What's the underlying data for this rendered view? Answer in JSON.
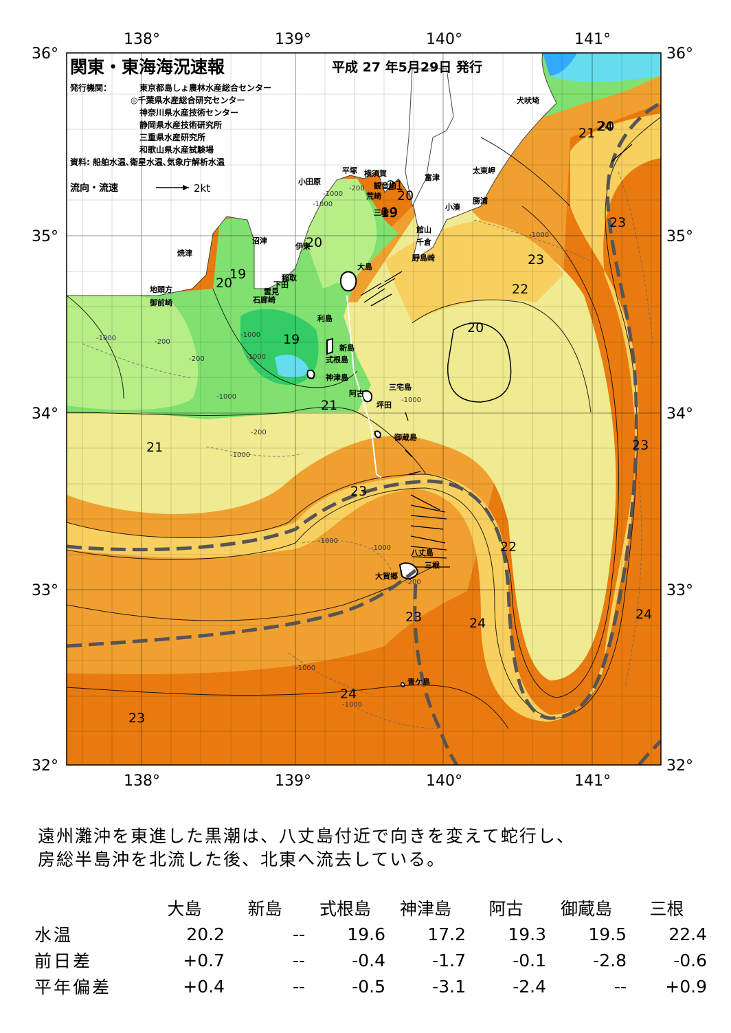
{
  "header": {
    "title": "関東・東海海況速報",
    "date": "平成 27 年5月29日 発行",
    "publisher_label": "発行機関：",
    "publishers": [
      "東京都島しょ農林水産総合センター",
      "◎千葉県水産総合研究センター",
      "神奈川県水産技術センター",
      "静岡県水産技術研究所",
      "三重県水産研究所",
      "和歌山県水産試験場"
    ],
    "source": "資料: 船舶水温､衛星水温､気象庁解析水温",
    "current_legend": "流向・流速",
    "current_scale": "2kt"
  },
  "axes": {
    "lon_labels": [
      "138°",
      "139°",
      "140°",
      "141°"
    ],
    "lat_labels": [
      "36°",
      "35°",
      "34°",
      "33°",
      "32°"
    ]
  },
  "places": [
    "犬吠埼",
    "太東岬",
    "勝浦",
    "小湊",
    "富津",
    "観音崎",
    "荒崎",
    "三崎",
    "横須賀",
    "平塚",
    "小田原",
    "館山",
    "千倉",
    "野島崎",
    "沼津",
    "伊東",
    "焼津",
    "稲取",
    "下田",
    "雲見",
    "石廊崎",
    "地頭方",
    "御前崎",
    "大島",
    "利島",
    "新島",
    "式根島",
    "神津島",
    "三宅島",
    "阿古",
    "坪田",
    "御蔵島",
    "八丈島",
    "大賀郷",
    "三根",
    "青ケ島"
  ],
  "isotherm_labels": [
    "21",
    "20",
    "19",
    "20",
    "19",
    "20",
    "19",
    "19",
    "21",
    "21",
    "23",
    "23",
    "22",
    "20",
    "23",
    "22",
    "23",
    "24",
    "24",
    "24",
    "23",
    "24",
    "21",
    "20",
    "23"
  ],
  "depth_labels": [
    "-200",
    "-1000",
    "-1000",
    "-200",
    "-1000",
    "-200",
    "-1000",
    "-1000",
    "-1000",
    "-1000",
    "-1000",
    "-200",
    "-1000",
    "-1000",
    "-200",
    "-1000",
    "-1000",
    "-1000"
  ],
  "colors": {
    "land": "#ffffff",
    "sea_cold": "#33cc66",
    "sea_19": "#80e070",
    "sea_20": "#b8ee88",
    "sea_21": "#f0ea90",
    "sea_22": "#f8d060",
    "sea_23": "#f0a030",
    "sea_24": "#e87a10",
    "cyan": "#66ddee",
    "kuroshio_axis": "#555555"
  },
  "summary": [
    "遠州灘沖を東進した黒潮は、八丈島付近で向きを変えて蛇行し、",
    "房総半島沖を北流した後、北東へ流去している。"
  ],
  "table": {
    "columns": [
      "大島",
      "新島",
      "式根島",
      "神津島",
      "阿古",
      "御蔵島",
      "三根"
    ],
    "rows": [
      {
        "label": "水温",
        "values": [
          "20.2",
          "--",
          "19.6",
          "17.2",
          "19.3",
          "19.5",
          "22.4"
        ]
      },
      {
        "label": "前日差",
        "values": [
          "+0.7",
          "--",
          "-0.4",
          "-1.7",
          "-0.1",
          "-2.8",
          "-0.6"
        ]
      },
      {
        "label": "平年偏差",
        "values": [
          "+0.4",
          "--",
          "-0.5",
          "-3.1",
          "-2.4",
          "--",
          "+0.9"
        ]
      }
    ]
  }
}
